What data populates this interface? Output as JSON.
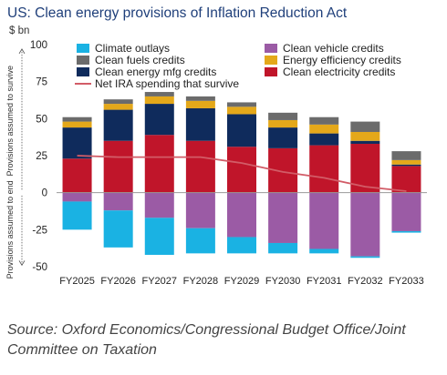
{
  "chart_data": {
    "type": "bar",
    "stacked": true,
    "title": "US: Clean energy provisions of Inflation Reduction Act",
    "ylabel": "$ bn",
    "ylim": [
      -50,
      100
    ],
    "yticks": [
      -50,
      -25,
      0,
      25,
      50,
      75,
      100
    ],
    "side_labels": {
      "upper": "Provisions assumed to survive",
      "lower": "Provisions assumed to end"
    },
    "categories": [
      "FY2025",
      "FY2026",
      "FY2027",
      "FY2028",
      "FY2029",
      "FY2030",
      "FY2031",
      "FY2032",
      "FY2033"
    ],
    "positive_series": [
      {
        "name": "Clean electricity credits",
        "color": "#c0152a",
        "values": [
          23,
          35,
          39,
          35,
          31,
          30,
          32,
          33,
          18
        ]
      },
      {
        "name": "Clean energy mfg credits",
        "color": "#0f2b5c",
        "values": [
          21,
          21,
          21,
          22,
          22,
          14,
          8,
          2,
          1
        ]
      },
      {
        "name": "Energy efficiency credits",
        "color": "#e4a81a",
        "values": [
          4,
          4,
          5,
          5,
          5,
          5,
          6,
          6,
          3
        ]
      },
      {
        "name": "Clean fuels credits",
        "color": "#6b6b6b",
        "values": [
          3,
          3,
          3,
          3,
          3,
          5,
          5,
          7,
          6
        ]
      }
    ],
    "negative_series": [
      {
        "name": "Clean vehicle credits",
        "color": "#9b5ba5",
        "values": [
          -6,
          -12,
          -17,
          -24,
          -30,
          -34,
          -38,
          -43,
          -26
        ]
      },
      {
        "name": "Climate outlays",
        "color": "#1ab2e3",
        "values": [
          -19,
          -25,
          -25,
          -17,
          -11,
          -7,
          -3,
          -1,
          -1
        ]
      }
    ],
    "line_series": {
      "name": "Net IRA spending that survive",
      "color": "#d25c67",
      "values": [
        25,
        24,
        24,
        24,
        20,
        14,
        10,
        4,
        1
      ]
    },
    "legend": [
      {
        "name": "Climate outlays",
        "color": "#1ab2e3",
        "kind": "box"
      },
      {
        "name": "Clean vehicle credits",
        "color": "#9b5ba5",
        "kind": "box"
      },
      {
        "name": "Clean fuels credits",
        "color": "#6b6b6b",
        "kind": "box"
      },
      {
        "name": "Energy efficiency credits",
        "color": "#e4a81a",
        "kind": "box"
      },
      {
        "name": "Clean energy mfg credits",
        "color": "#0f2b5c",
        "kind": "box"
      },
      {
        "name": "Clean electricity credits",
        "color": "#c0152a",
        "kind": "box"
      },
      {
        "name": "Net IRA spending that survive",
        "color": "#d25c67",
        "kind": "line"
      }
    ],
    "legend_placement": "top",
    "grid": false
  },
  "source": "Source: Oxford Economics/Congressional Budget Office/Joint Committee on Taxation"
}
